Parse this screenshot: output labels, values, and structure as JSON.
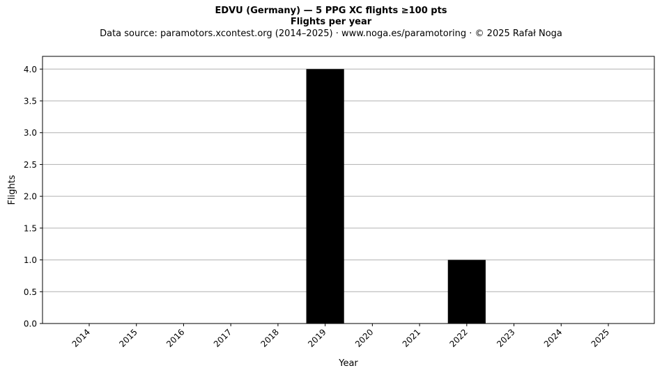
{
  "chart_data": {
    "type": "bar",
    "title": "EDVU (Germany)  —  5 PPG XC flights ≥100 pts",
    "subtitle": "Flights per year",
    "source_note": "Data source: paramotors.xcontest.org (2014–2025)  ·  www.noga.es/paramotoring  ·  © 2025 Rafał Noga",
    "xlabel": "Year",
    "ylabel": "Flights",
    "categories": [
      "2014",
      "2015",
      "2016",
      "2017",
      "2018",
      "2019",
      "2020",
      "2021",
      "2022",
      "2023",
      "2024",
      "2025"
    ],
    "values": [
      0,
      0,
      0,
      0,
      0,
      4,
      0,
      0,
      1,
      0,
      0,
      0
    ],
    "ylim": [
      0,
      4.2
    ],
    "yticks": [
      "0.0",
      "0.5",
      "1.0",
      "1.5",
      "2.0",
      "2.5",
      "3.0",
      "3.5",
      "4.0"
    ],
    "grid": "y-major",
    "bar_color": "#000000",
    "grid_color": "#b0b0b0"
  }
}
